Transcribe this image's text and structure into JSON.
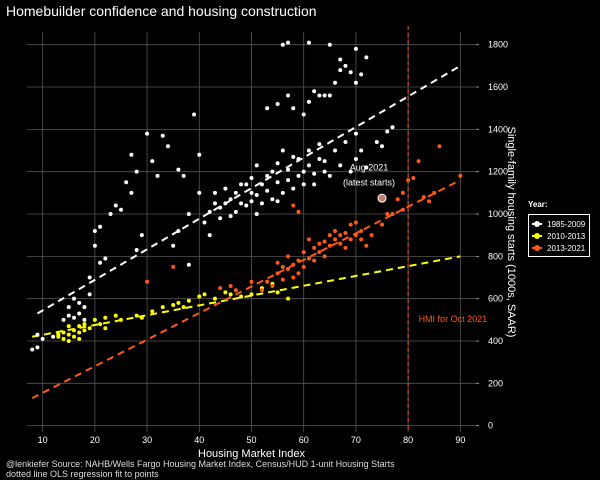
{
  "title": "Homebuilder confidence and housing construction",
  "caption_line1": "@lenkiefer Source: NAHB/Wells Fargo Housing Market Index, Census/HUD 1-unit Housing Starts",
  "caption_line2": "dotted line OLS regression fit to points",
  "legend": {
    "title": "Year:",
    "items": [
      {
        "label": "1985-2009",
        "color": "#ffffff"
      },
      {
        "label": "2010-2013",
        "color": "#ffff00"
      },
      {
        "label": "2013-2021",
        "color": "#ff5a14"
      }
    ]
  },
  "chart_data": {
    "type": "scatter",
    "title": "Homebuilder confidence and housing construction",
    "xlabel": "Housing Market Index",
    "ylabel": "Single-family housing starts (1000s, SAAR)",
    "xlim": [
      7,
      93
    ],
    "ylim": [
      -30,
      1860
    ],
    "xticks": [
      10,
      20,
      30,
      40,
      50,
      60,
      70,
      80,
      90
    ],
    "yticks": [
      0,
      200,
      400,
      600,
      800,
      1000,
      1200,
      1400,
      1600,
      1800
    ],
    "grid": true,
    "legend_position": "right",
    "annotations": [
      {
        "text": "Aug 2021",
        "x": 72.5,
        "y": 1205
      },
      {
        "text": "(latest starts)",
        "x": 72.5,
        "y": 1135
      },
      {
        "text": "HMI for Oct 2021",
        "x": 82,
        "y": 490
      }
    ],
    "highlight_point": {
      "label": "Aug 2021",
      "x": 75,
      "y": 1075
    },
    "vline": {
      "x": 80,
      "label": "HMI for Oct 2021",
      "color": "#ff5a14"
    },
    "series": [
      {
        "name": "1985-2009",
        "color": "#ffffff",
        "fit": {
          "x": [
            9,
            90
          ],
          "y": [
            530,
            1700
          ]
        },
        "points": [
          [
            8,
            360
          ],
          [
            9,
            370
          ],
          [
            9,
            430
          ],
          [
            10,
            410
          ],
          [
            12,
            420
          ],
          [
            14,
            500
          ],
          [
            15,
            560
          ],
          [
            15,
            520
          ],
          [
            16,
            600
          ],
          [
            16,
            510
          ],
          [
            17,
            580
          ],
          [
            17,
            530
          ],
          [
            18,
            500
          ],
          [
            18,
            560
          ],
          [
            19,
            620
          ],
          [
            19,
            700
          ],
          [
            20,
            850
          ],
          [
            20,
            920
          ],
          [
            21,
            940
          ],
          [
            21,
            770
          ],
          [
            22,
            790
          ],
          [
            23,
            1000
          ],
          [
            24,
            1040
          ],
          [
            25,
            1020
          ],
          [
            26,
            1150
          ],
          [
            27,
            1280
          ],
          [
            27,
            1100
          ],
          [
            28,
            830
          ],
          [
            28,
            1200
          ],
          [
            29,
            900
          ],
          [
            30,
            1380
          ],
          [
            31,
            1250
          ],
          [
            32,
            1180
          ],
          [
            33,
            1370
          ],
          [
            34,
            1320
          ],
          [
            35,
            850
          ],
          [
            36,
            920
          ],
          [
            36,
            1210
          ],
          [
            37,
            1180
          ],
          [
            38,
            1000
          ],
          [
            38,
            760
          ],
          [
            39,
            1470
          ],
          [
            40,
            1280
          ],
          [
            40,
            1100
          ],
          [
            41,
            960
          ],
          [
            42,
            1010
          ],
          [
            42,
            900
          ],
          [
            43,
            1100
          ],
          [
            43,
            1050
          ],
          [
            44,
            980
          ],
          [
            44,
            1030
          ],
          [
            45,
            1050
          ],
          [
            45,
            1120
          ],
          [
            46,
            1070
          ],
          [
            46,
            990
          ],
          [
            47,
            1100
          ],
          [
            47,
            1010
          ],
          [
            48,
            1050
          ],
          [
            48,
            1140
          ],
          [
            49,
            1140
          ],
          [
            49,
            1040
          ],
          [
            50,
            1100
          ],
          [
            50,
            1170
          ],
          [
            50,
            1060
          ],
          [
            51,
            1090
          ],
          [
            51,
            1000
          ],
          [
            51,
            1230
          ],
          [
            52,
            1140
          ],
          [
            52,
            1050
          ],
          [
            53,
            1110
          ],
          [
            53,
            1180
          ],
          [
            54,
            1070
          ],
          [
            54,
            1200
          ],
          [
            55,
            1150
          ],
          [
            55,
            1240
          ],
          [
            55,
            1060
          ],
          [
            56,
            1100
          ],
          [
            56,
            1300
          ],
          [
            57,
            1160
          ],
          [
            57,
            1210
          ],
          [
            58,
            1270
          ],
          [
            58,
            1120
          ],
          [
            59,
            1180
          ],
          [
            59,
            1260
          ],
          [
            60,
            1200
          ],
          [
            60,
            1140
          ],
          [
            61,
            1230
          ],
          [
            61,
            1300
          ],
          [
            62,
            1190
          ],
          [
            62,
            1140
          ],
          [
            63,
            1260
          ],
          [
            63,
            1330
          ],
          [
            64,
            1200
          ],
          [
            64,
            1250
          ],
          [
            65,
            1180
          ],
          [
            66,
            1300
          ],
          [
            67,
            1230
          ],
          [
            68,
            1340
          ],
          [
            69,
            1200
          ],
          [
            70,
            1380
          ],
          [
            70,
            1260
          ],
          [
            71,
            1300
          ],
          [
            72,
            1220
          ],
          [
            74,
            1340
          ],
          [
            75,
            1320
          ],
          [
            76,
            1390
          ],
          [
            77,
            1410
          ],
          [
            53,
            1500
          ],
          [
            55,
            1520
          ],
          [
            57,
            1560
          ],
          [
            58,
            1500
          ],
          [
            60,
            1470
          ],
          [
            61,
            1530
          ],
          [
            62,
            1580
          ],
          [
            63,
            1560
          ],
          [
            64,
            1560
          ],
          [
            65,
            1560
          ],
          [
            66,
            1620
          ],
          [
            67,
            1730
          ],
          [
            68,
            1700
          ],
          [
            69,
            1670
          ],
          [
            70,
            1620
          ],
          [
            70,
            1780
          ],
          [
            71,
            1660
          ],
          [
            72,
            1740
          ],
          [
            56,
            1800
          ],
          [
            57,
            1810
          ],
          [
            61,
            1810
          ],
          [
            65,
            1800
          ],
          [
            67,
            1680
          ]
        ]
      },
      {
        "name": "2010-2013",
        "color": "#ffff00",
        "fit": {
          "x": [
            8,
            90
          ],
          "y": [
            420,
            800
          ]
        },
        "points": [
          [
            13,
            430
          ],
          [
            13,
            420
          ],
          [
            14,
            410
          ],
          [
            14,
            440
          ],
          [
            15,
            400
          ],
          [
            15,
            430
          ],
          [
            15,
            470
          ],
          [
            16,
            420
          ],
          [
            16,
            450
          ],
          [
            17,
            410
          ],
          [
            17,
            440
          ],
          [
            17,
            470
          ],
          [
            18,
            450
          ],
          [
            18,
            480
          ],
          [
            19,
            460
          ],
          [
            20,
            500
          ],
          [
            21,
            480
          ],
          [
            22,
            510
          ],
          [
            22,
            460
          ],
          [
            24,
            520
          ],
          [
            25,
            500
          ],
          [
            28,
            520
          ],
          [
            29,
            510
          ],
          [
            31,
            540
          ],
          [
            33,
            560
          ],
          [
            35,
            570
          ],
          [
            36,
            580
          ],
          [
            37,
            560
          ],
          [
            38,
            590
          ],
          [
            40,
            610
          ],
          [
            41,
            620
          ],
          [
            43,
            600
          ],
          [
            45,
            630
          ],
          [
            46,
            620
          ],
          [
            48,
            610
          ],
          [
            50,
            620
          ],
          [
            52,
            650
          ],
          [
            54,
            670
          ],
          [
            55,
            630
          ],
          [
            57,
            600
          ]
        ]
      },
      {
        "name": "2013-2021",
        "color": "#ff5a14",
        "fit": {
          "x": [
            8,
            90
          ],
          "y": [
            130,
            1160
          ]
        },
        "points": [
          [
            30,
            680
          ],
          [
            35,
            750
          ],
          [
            44,
            650
          ],
          [
            46,
            660
          ],
          [
            47,
            640
          ],
          [
            50,
            680
          ],
          [
            52,
            640
          ],
          [
            53,
            680
          ],
          [
            54,
            660
          ],
          [
            55,
            720
          ],
          [
            55,
            770
          ],
          [
            56,
            690
          ],
          [
            56,
            750
          ],
          [
            57,
            800
          ],
          [
            57,
            740
          ],
          [
            58,
            760
          ],
          [
            58,
            700
          ],
          [
            59,
            780
          ],
          [
            59,
            720
          ],
          [
            60,
            750
          ],
          [
            60,
            820
          ],
          [
            61,
            790
          ],
          [
            61,
            880
          ],
          [
            62,
            840
          ],
          [
            62,
            780
          ],
          [
            63,
            860
          ],
          [
            63,
            820
          ],
          [
            64,
            870
          ],
          [
            64,
            800
          ],
          [
            65,
            900
          ],
          [
            65,
            850
          ],
          [
            66,
            880
          ],
          [
            66,
            920
          ],
          [
            67,
            860
          ],
          [
            67,
            900
          ],
          [
            68,
            840
          ],
          [
            68,
            910
          ],
          [
            69,
            950
          ],
          [
            69,
            880
          ],
          [
            70,
            900
          ],
          [
            70,
            960
          ],
          [
            71,
            920
          ],
          [
            71,
            880
          ],
          [
            72,
            850
          ],
          [
            73,
            900
          ],
          [
            75,
            950
          ],
          [
            76,
            1000
          ],
          [
            77,
            1000
          ],
          [
            78,
            1070
          ],
          [
            79,
            1100
          ],
          [
            79,
            1020
          ],
          [
            80,
            1160
          ],
          [
            81,
            1170
          ],
          [
            82,
            1250
          ],
          [
            83,
            1080
          ],
          [
            84,
            1060
          ],
          [
            85,
            1100
          ],
          [
            86,
            1320
          ],
          [
            90,
            1180
          ],
          [
            58,
            1040
          ],
          [
            59,
            1010
          ]
        ]
      }
    ]
  }
}
